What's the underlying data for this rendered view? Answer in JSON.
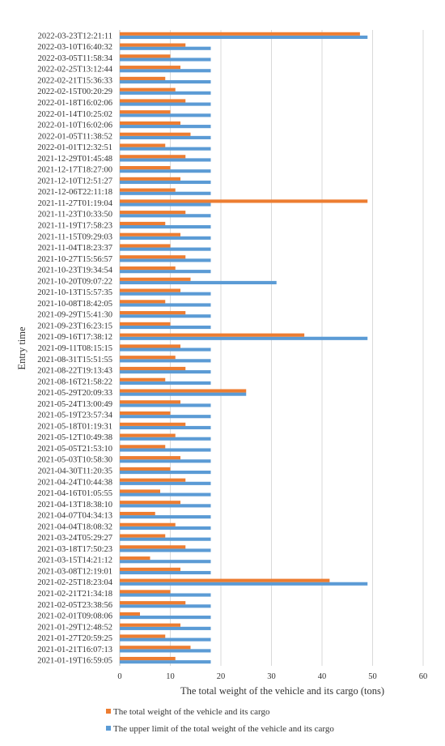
{
  "chart_data": {
    "type": "bar",
    "orientation": "horizontal",
    "title": "",
    "xlabel": "The total weight  of the vehicle and its cargo (tons)",
    "ylabel": "Entry  time",
    "xlim": [
      0,
      60
    ],
    "x_ticks": [
      "0",
      "10",
      "20",
      "30",
      "40",
      "50",
      "60"
    ],
    "grid": "vertical",
    "legend_position": "bottom",
    "colors": {
      "total": "#ED7D31",
      "limit": "#5B9BD5"
    },
    "y_tick_labels": [
      "2021-01-19T16:59:05",
      "2021-01-21T16:07:13",
      "2021-01-27T20:59:25",
      "2021-01-29T12:48:52",
      "2021-02-01T09:08:06",
      "2021-02-05T23:38:56",
      "2021-02-21T21:34:18",
      "2021-02-25T18:23:04",
      "2021-03-08T12:19:01",
      "2021-03-15T14:21:12",
      "2021-03-18T17:50:23",
      "2021-03-24T05:29:27",
      "2021-04-04T18:08:32",
      "2021-04-07T04:34:13",
      "2021-04-13T18:38:10",
      "2021-04-16T01:05:55",
      "2021-04-24T10:44:38",
      "2021-04-30T11:20:35",
      "2021-05-03T10:58:30",
      "2021-05-05T21:53:10",
      "2021-05-12T10:49:38",
      "2021-05-18T01:19:31",
      "2021-05-19T23:57:34",
      "2021-05-24T13:00:49",
      "2021-05-29T20:09:33",
      "2021-08-16T21:58:22",
      "2021-08-22T19:13:43",
      "2021-08-31T15:51:55",
      "2021-09-11T08:15:15",
      "2021-09-16T17:38:12",
      "2021-09-23T16:23:15",
      "2021-09-29T15:41:30",
      "2021-10-08T18:42:05",
      "2021-10-13T15:57:35",
      "2021-10-20T09:07:22",
      "2021-10-23T19:34:54",
      "2021-10-27T15:56:57",
      "2021-11-04T18:23:37",
      "2021-11-15T09:29:03",
      "2021-11-19T17:58:23",
      "2021-11-23T10:33:50",
      "2021-11-27T01:19:04",
      "2021-12-06T22:11:18",
      "2021-12-10T12:51:27",
      "2021-12-17T18:27:00",
      "2021-12-29T01:45:48",
      "2022-01-01T12:32:51",
      "2022-01-05T11:38:52",
      "2022-01-10T16:02:06",
      "2022-01-14T10:25:02",
      "2022-01-18T16:02:06",
      "2022-02-15T00:20:29",
      "2022-02-21T15:36:33",
      "2022-02-25T13:12:44",
      "2022-03-05T11:58:34",
      "2022-03-10T16:40:32",
      "2022-03-23T12:21:11"
    ],
    "series": [
      {
        "name": "The total weight  of the vehicle and its cargo",
        "values": [
          11,
          14,
          9,
          12,
          4,
          13,
          10,
          41.5,
          12,
          6,
          13,
          9,
          11,
          7,
          12,
          8,
          13,
          10,
          12,
          9,
          11,
          13,
          10,
          12,
          25,
          9,
          13,
          11,
          12,
          36.5,
          10,
          13,
          9,
          12,
          14,
          11,
          13,
          10,
          12,
          9,
          13,
          49,
          11,
          12,
          10,
          13,
          9,
          14,
          12,
          10,
          13,
          11,
          9,
          12,
          10,
          13,
          47.5
        ]
      },
      {
        "name": "The upper limit of the total weight of the vehicle and its cargo",
        "values": [
          18,
          18,
          18,
          18,
          18,
          18,
          18,
          49,
          18,
          18,
          18,
          18,
          18,
          18,
          18,
          18,
          18,
          18,
          18,
          18,
          18,
          18,
          18,
          18,
          25,
          18,
          18,
          18,
          18,
          49,
          18,
          18,
          18,
          18,
          31,
          18,
          18,
          18,
          18,
          18,
          18,
          18,
          18,
          18,
          18,
          18,
          18,
          18,
          18,
          18,
          18,
          18,
          18,
          18,
          18,
          18,
          49
        ]
      }
    ]
  }
}
